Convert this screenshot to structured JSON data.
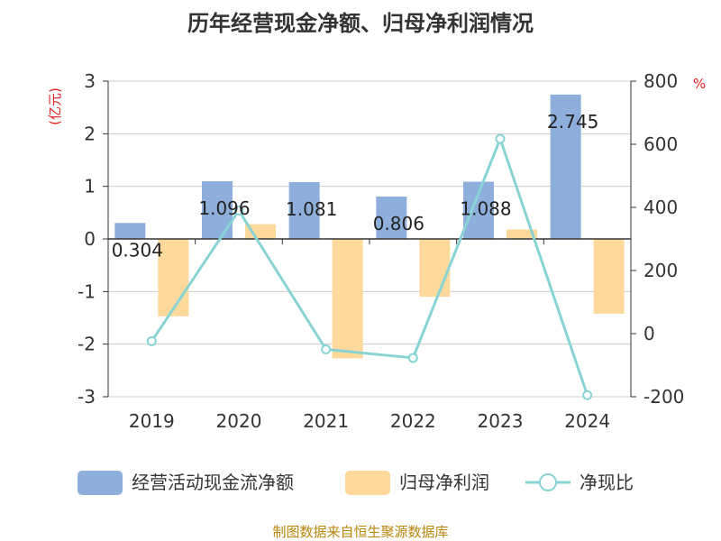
{
  "chart_data": {
    "type": "bar",
    "title": "历年经营现金净额、归母净利润情况",
    "categories": [
      "2019",
      "2020",
      "2021",
      "2022",
      "2023",
      "2024"
    ],
    "y_left": {
      "unit": "(亿元)",
      "ylim": [
        -3,
        3
      ],
      "ticks": [
        3,
        2,
        1,
        0,
        -1,
        -2,
        -3
      ]
    },
    "y_right": {
      "unit": "%",
      "ylim": [
        -200,
        800
      ],
      "ticks": [
        800,
        600,
        400,
        200,
        0,
        -200
      ]
    },
    "series": [
      {
        "name": "经营活动现金流净额",
        "type": "bar",
        "axis": "left",
        "color": "#8eaedc",
        "values": [
          0.304,
          1.096,
          1.081,
          0.806,
          1.088,
          2.745
        ],
        "labels": [
          "0.304",
          "1.096",
          "1.081",
          "0.806",
          "1.088",
          "2.745"
        ]
      },
      {
        "name": "归母净利润",
        "type": "bar",
        "axis": "left",
        "color": "#fdd99b",
        "values": [
          -1.47,
          0.28,
          -2.27,
          -1.1,
          0.18,
          -1.42
        ]
      },
      {
        "name": "净现比",
        "type": "line",
        "axis": "right",
        "color": "#88d4d4",
        "values": [
          -24,
          390,
          -50,
          -77,
          617,
          -195
        ]
      }
    ],
    "legend_position": "bottom",
    "grid": true
  },
  "source": "制图数据来自恒生聚源数据库"
}
